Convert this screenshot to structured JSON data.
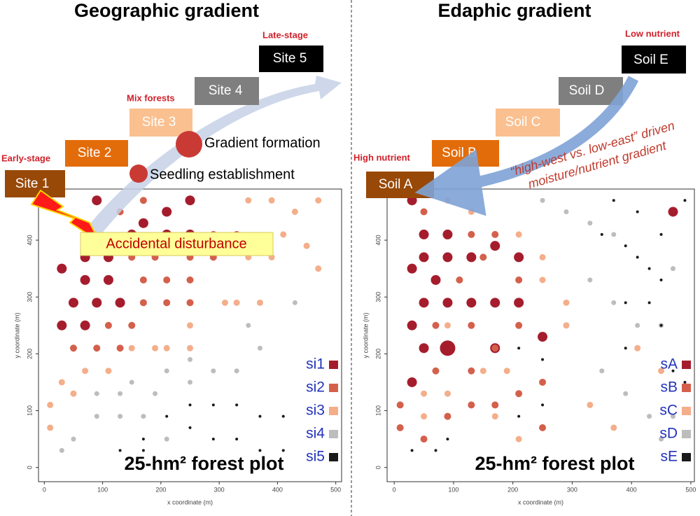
{
  "chart_data": [
    {
      "type": "scatter",
      "title": "Geographic gradient",
      "xlabel": "x coordinate (m)",
      "ylabel": "y coordinate (m)",
      "xlim": [
        -10,
        510
      ],
      "ylim": [
        -25,
        490
      ],
      "xticks": [
        0,
        100,
        200,
        300,
        400,
        500
      ],
      "yticks": [
        0,
        100,
        200,
        300,
        400
      ],
      "legend": "lower right",
      "plot_label": "25-hm² forest plot",
      "stage_labels": [
        "Early-stage",
        "Mix forests",
        "Late-stage"
      ],
      "boxes": [
        "Site 1",
        "Site 2",
        "Site 3",
        "Site 4",
        "Site 5"
      ],
      "notes": [
        "Gradient formation",
        "Seedling establishment",
        "Accidental disturbance"
      ],
      "series": [
        {
          "name": "si1",
          "color": "#a51d2d",
          "x": [
            90,
            30,
            70,
            110,
            50,
            90,
            130,
            70,
            110,
            30,
            70,
            170,
            210,
            250,
            250,
            210,
            150
          ],
          "values": [
            470,
            350,
            370,
            370,
            290,
            290,
            290,
            330,
            330,
            250,
            250,
            430,
            450,
            470,
            410,
            410,
            410
          ],
          "sizes": [
            7,
            7,
            7,
            7,
            7,
            7,
            7,
            7,
            7,
            7,
            7,
            7,
            7,
            7,
            7,
            7,
            7
          ]
        },
        {
          "name": "si2",
          "color": "#d4604c",
          "x": [
            130,
            170,
            150,
            190,
            170,
            210,
            210,
            110,
            150,
            50,
            90,
            130,
            170,
            250,
            250,
            250,
            290,
            290,
            330
          ],
          "values": [
            450,
            470,
            370,
            370,
            290,
            330,
            290,
            250,
            250,
            210,
            210,
            210,
            330,
            370,
            330,
            290,
            410,
            370,
            410
          ],
          "sizes": [
            5,
            5,
            5,
            5,
            5,
            5,
            5,
            5,
            5,
            5,
            5,
            5,
            5,
            5,
            5,
            5,
            5,
            5,
            5
          ]
        },
        {
          "name": "si3",
          "color": "#f4ae8a",
          "x": [
            70,
            110,
            30,
            50,
            10,
            10,
            150,
            190,
            210,
            250,
            250,
            310,
            330,
            370,
            350,
            390,
            410,
            430,
            450,
            470,
            470,
            350,
            390
          ],
          "values": [
            170,
            170,
            150,
            130,
            110,
            70,
            210,
            210,
            210,
            250,
            210,
            290,
            290,
            290,
            370,
            370,
            410,
            450,
            390,
            350,
            470,
            470,
            470
          ],
          "sizes": [
            4.5,
            4.5,
            4.5,
            4.5,
            4.5,
            4.5,
            4.5,
            4.5,
            4.5,
            4.5,
            4.5,
            4.5,
            4.5,
            4.5,
            4.5,
            4.5,
            4.5,
            4.5,
            4.5,
            4.5,
            4.5,
            4.5,
            4.5
          ]
        },
        {
          "name": "si4",
          "color": "#bdbdbd",
          "x": [
            90,
            130,
            150,
            190,
            210,
            250,
            250,
            290,
            330,
            350,
            370,
            430,
            90,
            130,
            170,
            210,
            50,
            30
          ],
          "values": [
            130,
            130,
            150,
            130,
            170,
            190,
            150,
            170,
            170,
            250,
            210,
            290,
            90,
            90,
            90,
            50,
            50,
            30
          ],
          "sizes": [
            3.5,
            3.5,
            3.5,
            3.5,
            3.5,
            3.5,
            3.5,
            3.5,
            3.5,
            3.5,
            3.5,
            3.5,
            3.5,
            3.5,
            3.5,
            3.5,
            3.5,
            3.5
          ]
        },
        {
          "name": "si5",
          "color": "#1a1a1a",
          "x": [
            250,
            290,
            330,
            370,
            410,
            210,
            250,
            290,
            330,
            370,
            410,
            170,
            130,
            170
          ],
          "values": [
            110,
            110,
            110,
            90,
            90,
            90,
            70,
            50,
            50,
            30,
            30,
            50,
            30,
            30
          ],
          "sizes": [
            2,
            2,
            2,
            2,
            2,
            2,
            2,
            2,
            2,
            2,
            2,
            2,
            2,
            2
          ]
        }
      ]
    },
    {
      "type": "scatter",
      "title": "Edaphic gradient",
      "xlabel": "x coordinate (m)",
      "ylabel": "y coordinate (m)",
      "xlim": [
        -12,
        506
      ],
      "ylim": [
        -25,
        490
      ],
      "xticks": [
        0,
        100,
        200,
        300,
        400,
        500
      ],
      "yticks": [
        0,
        100,
        200,
        300,
        400
      ],
      "legend": "lower right",
      "plot_label": "25-hm² forest plot",
      "stage_labels": [
        "High nutrient",
        "Low nutrient"
      ],
      "boxes": [
        "Soil A",
        "Soil B",
        "Soil C",
        "Soil D",
        "Soil E"
      ],
      "notes": [
        "“high-west vs. low-east” driven",
        "moisture/nutrient gradient"
      ],
      "series": [
        {
          "name": "sA",
          "color": "#a51d2d",
          "x": [
            30,
            50,
            90,
            50,
            90,
            30,
            70,
            50,
            90,
            130,
            170,
            30,
            50,
            90,
            170,
            30,
            130,
            170,
            210,
            210,
            250,
            470
          ],
          "values": [
            470,
            410,
            410,
            370,
            370,
            350,
            330,
            290,
            290,
            290,
            290,
            250,
            210,
            210,
            210,
            150,
            370,
            390,
            370,
            290,
            230,
            450
          ],
          "sizes": [
            7,
            7,
            7,
            7,
            7,
            7,
            7,
            7,
            7,
            7,
            7,
            7,
            7,
            11,
            7,
            7,
            7,
            7,
            7,
            7,
            7,
            7
          ]
        },
        {
          "name": "sB",
          "color": "#d4604c",
          "x": [
            50,
            130,
            170,
            110,
            150,
            70,
            130,
            210,
            210,
            70,
            130,
            170,
            210,
            250,
            130,
            10,
            10,
            50,
            90,
            170,
            250
          ],
          "values": [
            450,
            410,
            410,
            330,
            370,
            250,
            250,
            250,
            330,
            170,
            170,
            210,
            130,
            150,
            110,
            110,
            70,
            50,
            90,
            110,
            70
          ],
          "sizes": [
            5,
            5,
            5,
            5,
            5,
            5,
            5,
            5,
            5,
            5,
            5,
            5,
            5,
            5,
            5,
            5,
            5,
            5,
            5,
            5,
            5
          ]
        },
        {
          "name": "sC",
          "color": "#f4ae8a",
          "x": [
            90,
            130,
            210,
            250,
            250,
            290,
            90,
            150,
            190,
            290,
            50,
            90,
            50,
            170,
            210,
            330,
            370,
            410,
            450
          ],
          "values": [
            470,
            450,
            410,
            370,
            330,
            290,
            250,
            170,
            170,
            250,
            130,
            130,
            90,
            90,
            50,
            110,
            70,
            210,
            170
          ],
          "sizes": [
            4.5,
            4.5,
            4.5,
            4.5,
            4.5,
            4.5,
            4.5,
            4.5,
            4.5,
            4.5,
            4.5,
            4.5,
            4.5,
            4.5,
            4.5,
            4.5,
            4.5,
            4.5,
            4.5
          ]
        },
        {
          "name": "sD",
          "color": "#bdbdbd",
          "x": [
            250,
            290,
            330,
            370,
            330,
            370,
            410,
            450,
            470,
            350,
            390,
            430,
            470,
            450
          ],
          "values": [
            470,
            450,
            430,
            410,
            330,
            290,
            250,
            250,
            350,
            170,
            130,
            90,
            90,
            50
          ],
          "sizes": [
            3.5,
            3.5,
            3.5,
            3.5,
            3.5,
            3.5,
            3.5,
            3.5,
            3.5,
            3.5,
            3.5,
            3.5,
            3.5,
            3.5
          ]
        },
        {
          "name": "sE",
          "color": "#1a1a1a",
          "x": [
            370,
            410,
            450,
            390,
            410,
            430,
            350,
            450,
            490,
            390,
            430,
            450,
            390,
            470,
            490,
            210,
            250,
            210,
            250,
            90,
            30,
            70
          ],
          "values": [
            470,
            450,
            410,
            390,
            370,
            350,
            410,
            330,
            470,
            290,
            290,
            250,
            210,
            170,
            150,
            210,
            190,
            90,
            110,
            50,
            30,
            30
          ],
          "sizes": [
            2,
            2,
            2,
            2,
            2,
            2,
            2,
            2,
            2,
            2,
            2,
            2,
            2,
            2,
            2,
            2,
            2,
            2,
            2,
            2,
            2,
            2
          ]
        }
      ]
    }
  ]
}
